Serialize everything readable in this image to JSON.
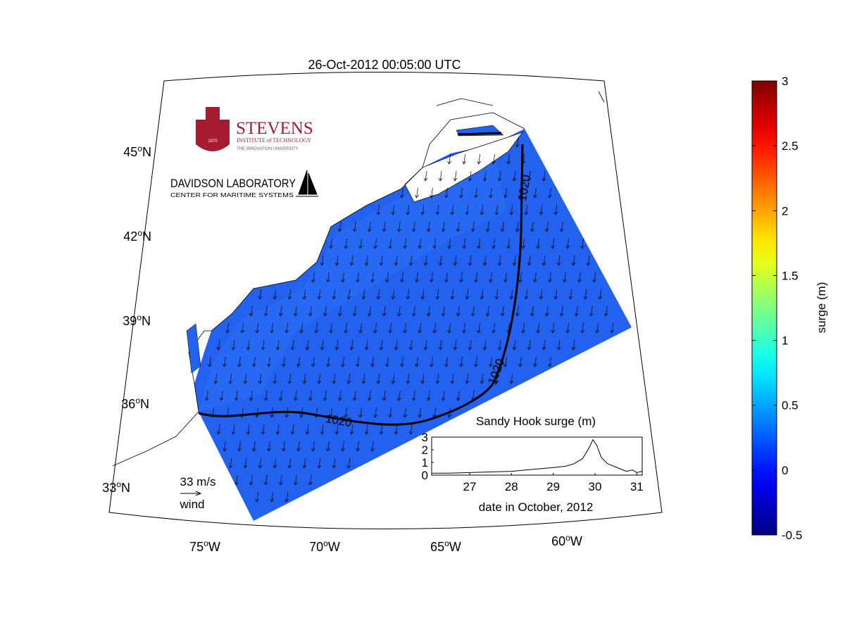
{
  "title": "26-Oct-2012 00:05:00 UTC",
  "logos": {
    "stevens": {
      "name": "STEVENS",
      "subtitle": "INSTITUTE of TECHNOLOGY",
      "motto": "THE INNOVATION UNIVERSITY",
      "year": "1870"
    },
    "davidson": {
      "name": "DAVIDSON LABORATORY",
      "subtitle": "CENTER FOR MARITIME SYSTEMS"
    }
  },
  "map": {
    "lat_labels": [
      {
        "deg": "45",
        "mark": "o",
        "hemi": "N"
      },
      {
        "deg": "42",
        "mark": "o",
        "hemi": "N"
      },
      {
        "deg": "39",
        "mark": "o",
        "hemi": "N"
      },
      {
        "deg": "36",
        "mark": "o",
        "hemi": "N"
      },
      {
        "deg": "33",
        "mark": "o",
        "hemi": "N"
      }
    ],
    "lon_labels": [
      {
        "deg": "75",
        "mark": "o",
        "hemi": "W"
      },
      {
        "deg": "70",
        "mark": "o",
        "hemi": "W"
      },
      {
        "deg": "65",
        "mark": "o",
        "hemi": "W"
      },
      {
        "deg": "60",
        "mark": "o",
        "hemi": "W"
      }
    ],
    "contour_labels": [
      "1020",
      "1020",
      "1020"
    ],
    "wind_scale": {
      "speed": "33 m/s",
      "label": "wind"
    }
  },
  "colorbar": {
    "label": "surge (m)",
    "lim": [
      -0.5,
      3
    ],
    "ticks": [
      -0.5,
      0,
      0.5,
      1,
      1.5,
      2,
      2.5,
      3
    ],
    "colormap": "jet"
  },
  "chart_data": {
    "type": "line",
    "title": "Sandy Hook surge (m)",
    "x_label": "date in October, 2012",
    "x": [
      26.1,
      26.5,
      27,
      27.5,
      28,
      28.5,
      29,
      29.3,
      29.5,
      29.7,
      29.85,
      29.95,
      30.05,
      30.15,
      30.3,
      30.45,
      30.6,
      30.75,
      30.9,
      31,
      31.13
    ],
    "values": [
      0.15,
      0.15,
      0.2,
      0.25,
      0.3,
      0.45,
      0.6,
      0.7,
      0.9,
      1.3,
      2.1,
      2.8,
      2.3,
      1.4,
      0.9,
      0.7,
      0.5,
      0.3,
      0.4,
      0.2,
      0.3
    ],
    "color": "#000000",
    "xlim": [
      26.09,
      31.13
    ],
    "ylim": [
      0,
      3
    ],
    "xticks": [
      27,
      28,
      29,
      30,
      31
    ],
    "yticks": [
      0,
      1,
      2,
      3
    ]
  }
}
